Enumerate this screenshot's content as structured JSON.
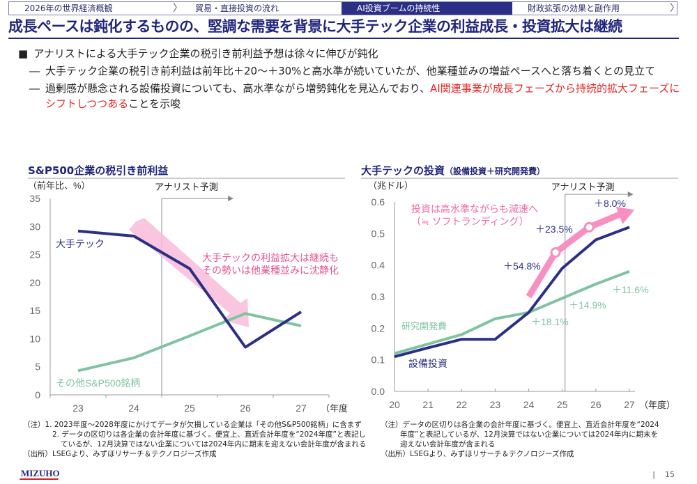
{
  "tabs": [
    {
      "label": "2026年の世界経済概観",
      "active": false
    },
    {
      "label": "貿易・直接投資の流れ",
      "active": false
    },
    {
      "label": "AI投資ブームの持続性",
      "active": true
    },
    {
      "label": "財政拡張の効果と副作用",
      "active": false
    }
  ],
  "title": "成長ペースは鈍化するものの、堅調な需要を背景に大手テック企業の利益成長・投資拡大は継続",
  "bullets": {
    "main": "アナリストによる大手テック企業の税引き前利益予想は徐々に伸びが鈍化",
    "sub1": "大手テック企業の税引き前利益は前年比＋20～＋30%と高水準が続いていたが、他業種並みの増益ペースへと落ち着くとの見立て",
    "sub2_plain": "過剰感が懸念される設備投資についても、高水準ながら増勢鈍化を見込んでおり、",
    "sub2_red": "AI関連事業が成長フェーズから持続的拡大フェーズにシフトしつつある",
    "sub2_end": "ことを示唆"
  },
  "chart_data": [
    {
      "type": "line",
      "title": "S&P500企業の税引き前利益",
      "ylabel": "（前年比、%）",
      "xlabel": "（年度）",
      "x": [
        "23",
        "24",
        "25",
        "26",
        "27"
      ],
      "ylim": [
        0,
        35
      ],
      "yticks": [
        0,
        5,
        10,
        15,
        20,
        25,
        30,
        35
      ],
      "forecast_label": "アナリスト予測",
      "series": [
        {
          "name": "大手テック",
          "color": "#2b2f86",
          "values": [
            29.2,
            28.3,
            22.5,
            8.5,
            14.8
          ]
        },
        {
          "name": "その他S&P500銘柄",
          "color": "#7fc3a0",
          "values": [
            4.3,
            6.6,
            10.5,
            14.5,
            12.3
          ]
        }
      ],
      "annotation": [
        "大手テックの利益拡大は継続も",
        "その勢いは他業種並みに沈静化"
      ]
    },
    {
      "type": "line",
      "title": "大手テックの投資",
      "title_small": "（設備投資＋研究開発費）",
      "ylabel": "（兆ドル）",
      "xlabel": "（年度）",
      "x": [
        "20",
        "21",
        "22",
        "23",
        "24",
        "25",
        "26",
        "27"
      ],
      "ylim": [
        0,
        0.6
      ],
      "yticks": [
        "0.0",
        "0.1",
        "0.2",
        "0.3",
        "0.4",
        "0.5",
        "0.6"
      ],
      "forecast_label": "アナリスト予測",
      "series": [
        {
          "name": "設備投資",
          "color": "#2b2f86",
          "values": [
            0.11,
            0.138,
            0.165,
            0.165,
            0.25,
            0.39,
            0.48,
            0.52
          ]
        },
        {
          "name": "研究開発費",
          "color": "#7fc3a0",
          "values": [
            0.12,
            0.15,
            0.18,
            0.23,
            0.25,
            0.295,
            0.34,
            0.38
          ]
        }
      ],
      "capex_growth_labels": [
        "+54.8%",
        "+23.5%",
        "+8.0%"
      ],
      "rd_growth_labels": [
        "+18.1%",
        "+14.9%",
        "+11.6%"
      ],
      "annotation": [
        "投資は高水準ながらも減速へ",
        "（≒ ソフトランディング）"
      ]
    }
  ],
  "notes_left": {
    "n1": "（注）1. 2023年度～2028年度にかけてデータが欠損している企業は「その他S&P500銘柄」に含まず",
    "n2a": "2. データの区切りは各企業の会計年度に基づく。便宜上、直近会計年度を“2024年度”と表記し",
    "n2b": "ているが、12月決算ではない企業については2024年内に期末を迎えない会計年度が含まれる",
    "src": "（出所）LSEGより、みずほリサーチ＆テクノロジーズ作成"
  },
  "notes_right": {
    "n1a": "（注）データの区切りは各企業の会計年度に基づく。便宜上、直近会計年度を“2024",
    "n1b": "年度”と表記しているが、12月決算ではない企業については2024年内に期末を",
    "n1c": "迎えない会計年度が含まれる",
    "src": "（出所）LSEGより、みずほリサーチ＆テクノロジーズ作成"
  },
  "logo": "MIZUHO",
  "page_number": "15"
}
